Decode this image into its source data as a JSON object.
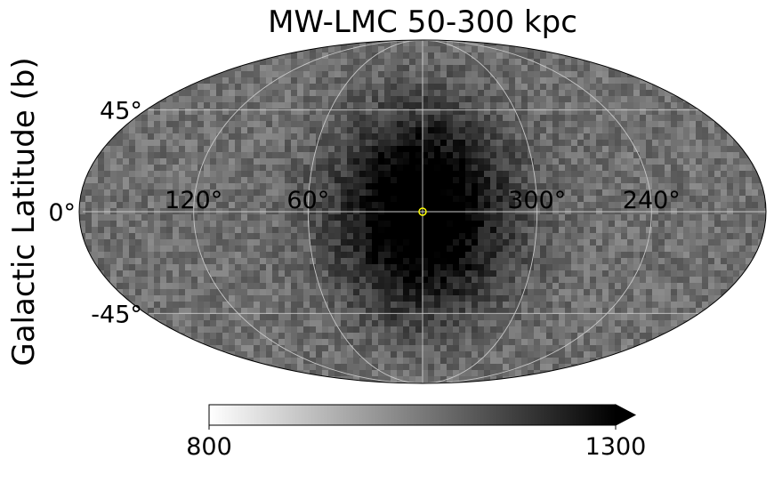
{
  "chart_data": {
    "type": "heatmap",
    "projection": "mollweide",
    "title": "MW-LMC 50-300 kpc",
    "ylabel": "Galactic Latitude (b)",
    "xlabel": "",
    "lat_ticks": [
      {
        "value": 45,
        "label": "45°"
      },
      {
        "value": 0,
        "label": "0°"
      },
      {
        "value": -45,
        "label": "-45°"
      }
    ],
    "lon_ticks": [
      {
        "value": 120,
        "label": "120°"
      },
      {
        "value": 60,
        "label": "60°"
      },
      {
        "value": 300,
        "label": "300°"
      },
      {
        "value": 240,
        "label": "240°"
      }
    ],
    "grid": true,
    "colormap": "greys",
    "colorbar": {
      "min": 800,
      "max": 1300,
      "min_label": "800",
      "max_label": "1300",
      "extend": "max",
      "orientation": "horizontal",
      "placement": "bottom"
    },
    "field": {
      "description_values": "counts peak near l=0, b=0 and fall off toward the anti-center",
      "peak_value": 1300,
      "edge_value": 1080
    },
    "marker": {
      "l": 0,
      "b": 0,
      "color": "#ffff00",
      "shape": "open-circle"
    }
  }
}
